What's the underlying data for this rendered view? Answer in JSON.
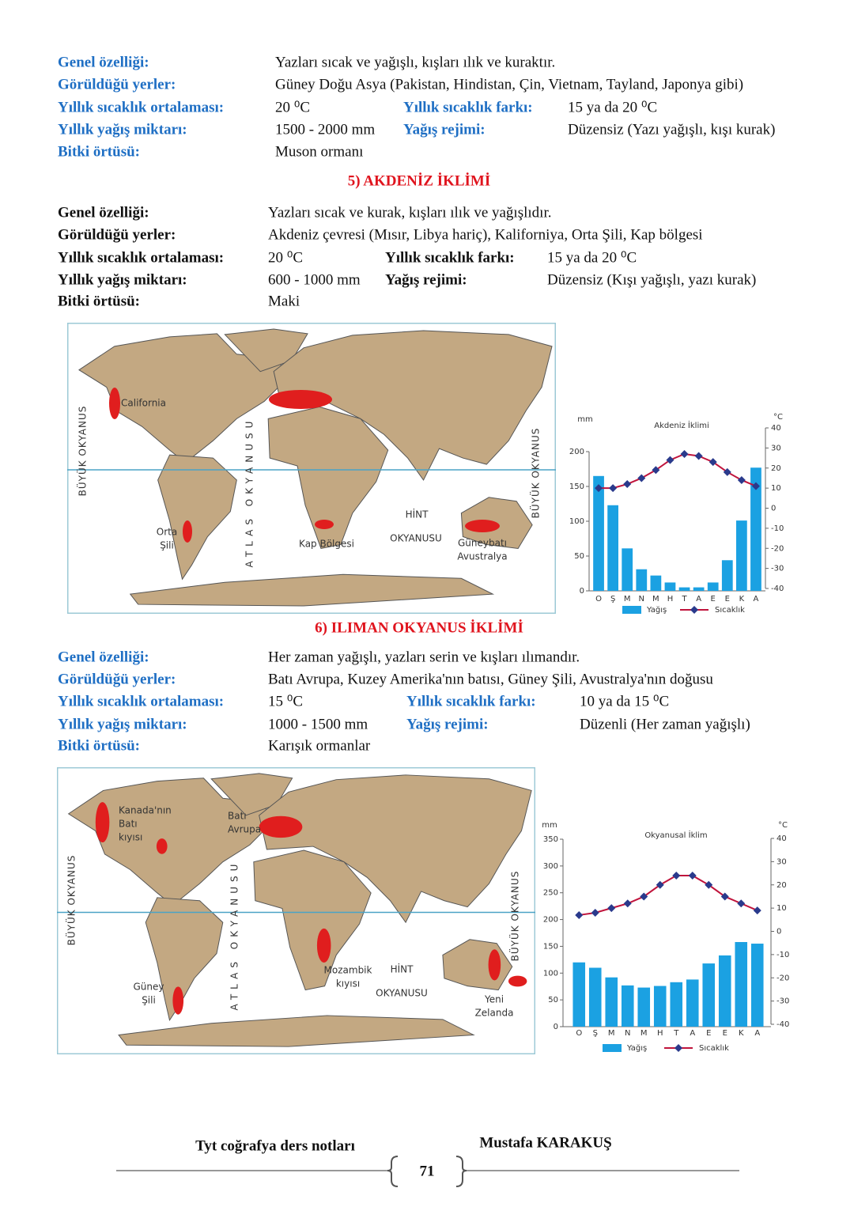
{
  "blocks": [
    {
      "rows": [
        [
          "Genel özelliği:",
          "Yazları sıcak ve yağışlı, kışları ılık ve kuraktır."
        ],
        [
          "Görüldüğü yerler:",
          "Güney Doğu Asya (Pakistan, Hindistan, Çin, Vietnam, Tayland, Japonya gibi)"
        ],
        [
          "Yıllık sıcaklık ortalaması:",
          "20 ⁰C",
          "Yıllık sıcaklık farkı:",
          "15 ya da 20 ⁰C"
        ],
        [
          "Yıllık yağış miktarı:",
          "1500 - 2000 mm",
          "Yağış rejimi:",
          "Düzensiz (Yazı yağışlı, kışı kurak)"
        ],
        [
          "Bitki örtüsü:",
          "Muson ormanı"
        ]
      ]
    },
    {
      "heading": "5) AKDENİZ İKLİMİ",
      "rows": [
        [
          "Genel özelliği:",
          "Yazları sıcak ve kurak, kışları ılık ve yağışlıdır."
        ],
        [
          "Görüldüğü yerler:",
          "Akdeniz çevresi (Mısır, Libya hariç), Kaliforniya, Orta Şili, Kap bölgesi"
        ],
        [
          "Yıllık sıcaklık ortalaması:",
          "20 ⁰C",
          "Yıllık sıcaklık farkı:",
          "15 ya da 20 ⁰C"
        ],
        [
          "Yıllık yağış miktarı:",
          "600 - 1000 mm",
          "Yağış rejimi:",
          "Düzensiz (Kışı yağışlı,  yazı kurak)"
        ],
        [
          "Bitki örtüsü:",
          "Maki"
        ]
      ]
    },
    {
      "heading": "6) ILIMAN OKYANUS İKLİMİ",
      "rows": [
        [
          "Genel özelliği:",
          "Her zaman yağışlı, yazları serin ve kışları ılımandır."
        ],
        [
          "Görüldüğü yerler:",
          "Batı Avrupa, Kuzey Amerika'nın batısı, Güney Şili, Avustralya'nın doğusu"
        ],
        [
          "Yıllık sıcaklık ortalaması:",
          "15 ⁰C",
          "Yıllık sıcaklık farkı:",
          "10 ya da 15 ⁰C"
        ],
        [
          "Yıllık yağış miktarı:",
          "1000 - 1500 mm",
          "Yağış rejimi:",
          "Düzenli (Her zaman yağışlı)"
        ],
        [
          "Bitki örtüsü:",
          "Karışık ormanlar"
        ]
      ]
    }
  ],
  "maps": [
    {
      "labels": [
        [
          "BÜYÜK OKYANUS"
        ],
        [
          "California"
        ],
        [
          "ATLAS OKYANUSU"
        ],
        [
          "BÜYÜK OKYANUS"
        ],
        [
          "Orta",
          "Şili"
        ],
        [
          "Kap Bölgesi"
        ],
        [
          "HİNT"
        ],
        [
          "OKYANUSU"
        ],
        [
          "Güneybatı",
          "Avustralya"
        ]
      ]
    },
    {
      "labels": [
        [
          "BÜYÜK OKYANUS"
        ],
        [
          "Kanada'nın",
          "Batı",
          "kıyısı"
        ],
        [
          "Batı",
          "Avrupa"
        ],
        [
          "ATLAS OKYANUSU"
        ],
        [
          "BÜYÜK OKYANUS"
        ],
        [
          "Güney",
          "Şili"
        ],
        [
          "Mozambik",
          "kıyısı"
        ],
        [
          "HİNT"
        ],
        [
          "OKYANUSU"
        ],
        [
          "Yeni",
          "Zelanda"
        ]
      ]
    }
  ],
  "chart_data": [
    {
      "type": "bar_line",
      "title": "Akdeniz İklimi",
      "y_label": "mm",
      "y2_label": "°C",
      "categories": [
        "O",
        "Ş",
        "M",
        "N",
        "M",
        "H",
        "T",
        "A",
        "E",
        "E",
        "K",
        "A"
      ],
      "series": [
        {
          "name": "Yağış",
          "color": "#1ba1e2",
          "values": [
            165,
            123,
            61,
            31,
            22,
            12,
            5,
            5,
            12,
            44,
            101,
            177
          ]
        },
        {
          "name": "Sıcaklık",
          "color": "#c0143c",
          "axis": "y2",
          "values": [
            10,
            10,
            12,
            15,
            19,
            24,
            27,
            26,
            23,
            18,
            14,
            11
          ]
        }
      ],
      "ylim": [
        0,
        200
      ],
      "yticks": [
        0,
        50,
        100,
        150,
        200
      ],
      "y2lim": [
        -40,
        40
      ],
      "y2ticks": [
        -40,
        -30,
        -20,
        -10,
        0,
        10,
        20,
        30,
        40
      ]
    },
    {
      "type": "bar_line",
      "title": "Okyanusal İklim",
      "y_label": "mm",
      "y2_label": "°C",
      "categories": [
        "O",
        "Ş",
        "M",
        "N",
        "M",
        "H",
        "T",
        "A",
        "E",
        "E",
        "K",
        "A"
      ],
      "series": [
        {
          "name": "Yağış",
          "color": "#1ba1e2",
          "values": [
            120,
            110,
            92,
            77,
            73,
            76,
            83,
            88,
            118,
            133,
            158,
            155
          ]
        },
        {
          "name": "Sıcaklık",
          "color": "#c0143c",
          "axis": "y2",
          "values": [
            7,
            8,
            10,
            12,
            15,
            20,
            24,
            24,
            20,
            15,
            12,
            9
          ]
        }
      ],
      "ylim": [
        0,
        350
      ],
      "yticks": [
        0,
        50,
        100,
        150,
        200,
        250,
        300,
        350
      ],
      "y2lim": [
        -40,
        40
      ],
      "y2ticks": [
        -40,
        -30,
        -20,
        -10,
        0,
        10,
        20,
        30,
        40
      ]
    }
  ],
  "footer": {
    "course": "Tyt coğrafya ders notları",
    "author": "Mustafa KARAKUŞ",
    "page": 71
  }
}
